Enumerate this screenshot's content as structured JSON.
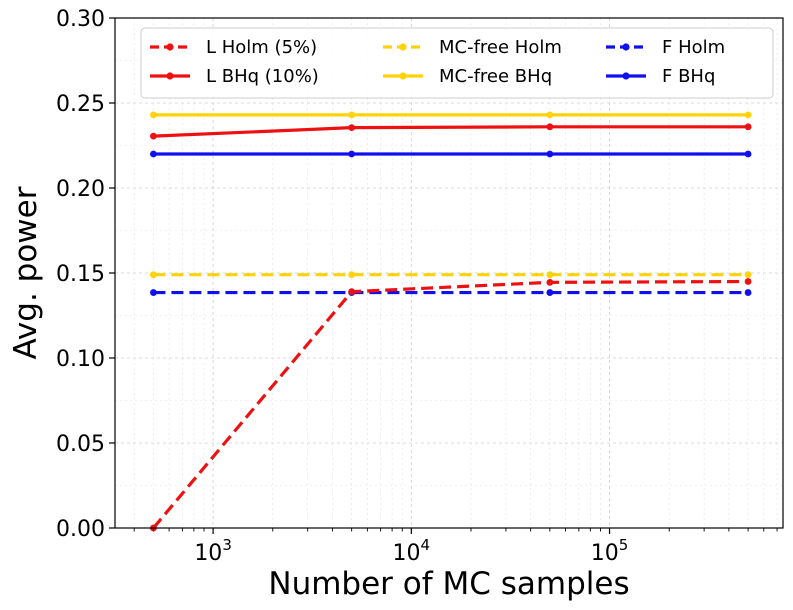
{
  "chart_data": {
    "type": "line",
    "title": "",
    "xlabel": "Number of MC samples",
    "ylabel": "Avg. power",
    "xscale": "log",
    "xlim": [
      320,
      750000
    ],
    "ylim": [
      0,
      0.3
    ],
    "grid": true,
    "x": [
      500,
      5000,
      50000,
      500000
    ],
    "x_tick_labels": [
      {
        "base": "10",
        "exp": "3",
        "value": 1000
      },
      {
        "base": "10",
        "exp": "4",
        "value": 10000
      },
      {
        "base": "10",
        "exp": "5",
        "value": 100000
      }
    ],
    "y_ticks": [
      0.0,
      0.05,
      0.1,
      0.15,
      0.2,
      0.25,
      0.3
    ],
    "y_tick_labels": [
      "0.00",
      "0.05",
      "0.10",
      "0.15",
      "0.20",
      "0.25",
      "0.30"
    ],
    "legend_position": "top",
    "series": [
      {
        "name": "L Holm (5%)",
        "color": "#ee1111",
        "style": "dashed",
        "values": [
          0.0,
          0.139,
          0.1445,
          0.145
        ]
      },
      {
        "name": "L BHq (10%)",
        "color": "#ee1111",
        "style": "solid",
        "values": [
          0.2305,
          0.2355,
          0.236,
          0.236
        ]
      },
      {
        "name": "MC-free Holm",
        "color": "#ffd20a",
        "style": "dashed",
        "values": [
          0.149,
          0.149,
          0.149,
          0.149
        ]
      },
      {
        "name": "MC-free BHq",
        "color": "#ffd20a",
        "style": "solid",
        "values": [
          0.243,
          0.243,
          0.243,
          0.243
        ]
      },
      {
        "name": "F Holm",
        "color": "#1010ee",
        "style": "dashed",
        "values": [
          0.1385,
          0.1385,
          0.1385,
          0.1385
        ]
      },
      {
        "name": "F BHq",
        "color": "#1010ee",
        "style": "solid",
        "values": [
          0.22,
          0.22,
          0.22,
          0.22
        ]
      }
    ]
  }
}
